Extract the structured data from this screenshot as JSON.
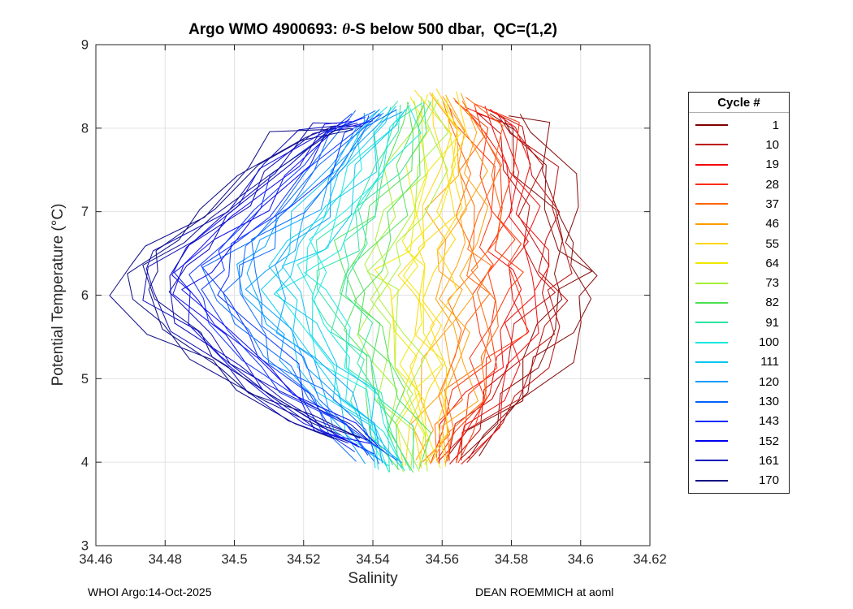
{
  "figure": {
    "title": {
      "part1": "Argo WMO 4900693: ",
      "theta": "θ",
      "part2": "-S below 500 dbar,  QC=(1,2)"
    },
    "footer": {
      "left": "WHOI Argo:14-Oct-2025",
      "right": "DEAN ROEMMICH at aoml"
    }
  },
  "chart_data": {
    "type": "line",
    "title": "Argo WMO 4900693: θ-S below 500 dbar,  QC=(1,2)",
    "xlabel": "Salinity",
    "ylabel": "Potential Temperature (°C)",
    "xlim": [
      34.46,
      34.62
    ],
    "ylim": [
      3,
      9
    ],
    "xticks": [
      34.46,
      34.48,
      34.5,
      34.52,
      34.54,
      34.56,
      34.58,
      34.6,
      34.62
    ],
    "xtick_labels": [
      "34.46",
      "34.48",
      "34.5",
      "34.52",
      "34.54",
      "34.56",
      "34.58",
      "34.6",
      "34.62"
    ],
    "yticks": [
      3,
      4,
      5,
      6,
      7,
      8,
      9
    ],
    "ytick_labels": [
      "3",
      "4",
      "5",
      "6",
      "7",
      "8",
      "9"
    ],
    "grid": true,
    "legend": {
      "title": "Cycle #",
      "position": "right-outside"
    },
    "series": [
      {
        "cycle": "1",
        "color": "#800000",
        "points": [
          [
            34.578,
            8.15
          ],
          [
            34.584,
            8.0
          ],
          [
            34.59,
            7.5
          ],
          [
            34.594,
            7.0
          ],
          [
            34.596,
            6.6
          ],
          [
            34.599,
            6.3
          ],
          [
            34.597,
            6.0
          ],
          [
            34.595,
            5.6
          ],
          [
            34.589,
            5.2
          ],
          [
            34.582,
            4.8
          ],
          [
            34.573,
            4.4
          ],
          [
            34.566,
            4.05
          ]
        ]
      },
      {
        "cycle": "10",
        "color": "#BB0000",
        "points": [
          [
            34.572,
            8.2
          ],
          [
            34.58,
            8.0
          ],
          [
            34.586,
            7.5
          ],
          [
            34.588,
            7.0
          ],
          [
            34.59,
            6.6
          ],
          [
            34.591,
            6.3
          ],
          [
            34.592,
            6.0
          ],
          [
            34.589,
            5.6
          ],
          [
            34.584,
            5.2
          ],
          [
            34.578,
            4.8
          ],
          [
            34.57,
            4.4
          ],
          [
            34.564,
            4.0
          ]
        ]
      },
      {
        "cycle": "19",
        "color": "#F10000",
        "points": [
          [
            34.57,
            8.25
          ],
          [
            34.577,
            8.0
          ],
          [
            34.581,
            7.5
          ],
          [
            34.582,
            7.0
          ],
          [
            34.583,
            6.6
          ],
          [
            34.584,
            6.3
          ],
          [
            34.585,
            6.0
          ],
          [
            34.582,
            5.6
          ],
          [
            34.578,
            5.2
          ],
          [
            34.574,
            4.8
          ],
          [
            34.567,
            4.4
          ],
          [
            34.562,
            4.0
          ]
        ]
      },
      {
        "cycle": "28",
        "color": "#FF2B00",
        "points": [
          [
            34.566,
            8.3
          ],
          [
            34.573,
            8.0
          ],
          [
            34.576,
            7.5
          ],
          [
            34.576,
            7.0
          ],
          [
            34.577,
            6.6
          ],
          [
            34.577,
            6.3
          ],
          [
            34.577,
            6.0
          ],
          [
            34.576,
            5.6
          ],
          [
            34.573,
            5.2
          ],
          [
            34.569,
            4.8
          ],
          [
            34.564,
            4.4
          ],
          [
            34.561,
            4.0
          ]
        ]
      },
      {
        "cycle": "37",
        "color": "#FF6300",
        "points": [
          [
            34.564,
            8.35
          ],
          [
            34.57,
            8.0
          ],
          [
            34.571,
            7.5
          ],
          [
            34.571,
            7.0
          ],
          [
            34.57,
            6.6
          ],
          [
            34.57,
            6.3
          ],
          [
            34.57,
            6.0
          ],
          [
            34.57,
            5.6
          ],
          [
            34.568,
            5.2
          ],
          [
            34.565,
            4.8
          ],
          [
            34.561,
            4.4
          ],
          [
            34.559,
            4.0
          ]
        ]
      },
      {
        "cycle": "46",
        "color": "#FF9C00",
        "points": [
          [
            34.561,
            8.4
          ],
          [
            34.566,
            8.0
          ],
          [
            34.567,
            7.5
          ],
          [
            34.565,
            7.0
          ],
          [
            34.564,
            6.6
          ],
          [
            34.563,
            6.3
          ],
          [
            34.563,
            6.0
          ],
          [
            34.563,
            5.6
          ],
          [
            34.562,
            5.2
          ],
          [
            34.561,
            4.8
          ],
          [
            34.558,
            4.4
          ],
          [
            34.557,
            4.0
          ]
        ]
      },
      {
        "cycle": "55",
        "color": "#FFD500",
        "points": [
          [
            34.558,
            8.45
          ],
          [
            34.563,
            8.0
          ],
          [
            34.562,
            7.5
          ],
          [
            34.56,
            7.0
          ],
          [
            34.557,
            6.6
          ],
          [
            34.556,
            6.3
          ],
          [
            34.556,
            6.0
          ],
          [
            34.557,
            5.6
          ],
          [
            34.557,
            5.2
          ],
          [
            34.557,
            4.8
          ],
          [
            34.556,
            4.4
          ],
          [
            34.555,
            3.95
          ]
        ]
      },
      {
        "cycle": "64",
        "color": "#F0E800",
        "points": [
          [
            34.556,
            8.4
          ],
          [
            34.559,
            8.0
          ],
          [
            34.557,
            7.5
          ],
          [
            34.554,
            7.0
          ],
          [
            34.551,
            6.6
          ],
          [
            34.549,
            6.3
          ],
          [
            34.549,
            6.0
          ],
          [
            34.551,
            5.6
          ],
          [
            34.552,
            5.2
          ],
          [
            34.552,
            4.8
          ],
          [
            34.553,
            4.4
          ],
          [
            34.554,
            3.95
          ]
        ]
      },
      {
        "cycle": "73",
        "color": "#A6F035",
        "points": [
          [
            34.555,
            8.35
          ],
          [
            34.556,
            8.0
          ],
          [
            34.553,
            7.5
          ],
          [
            34.549,
            7.0
          ],
          [
            34.544,
            6.6
          ],
          [
            34.542,
            6.3
          ],
          [
            34.542,
            6.0
          ],
          [
            34.544,
            5.6
          ],
          [
            34.546,
            5.2
          ],
          [
            34.548,
            4.8
          ],
          [
            34.55,
            4.4
          ],
          [
            34.552,
            3.9
          ]
        ]
      },
      {
        "cycle": "82",
        "color": "#4CE052",
        "points": [
          [
            34.553,
            8.3
          ],
          [
            34.552,
            8.0
          ],
          [
            34.548,
            7.5
          ],
          [
            34.543,
            7.0
          ],
          [
            34.538,
            6.6
          ],
          [
            34.535,
            6.3
          ],
          [
            34.535,
            6.0
          ],
          [
            34.538,
            5.6
          ],
          [
            34.541,
            5.2
          ],
          [
            34.544,
            4.8
          ],
          [
            34.547,
            4.4
          ],
          [
            34.55,
            3.9
          ]
        ]
      },
      {
        "cycle": "91",
        "color": "#2BE3A0",
        "points": [
          [
            34.551,
            8.3
          ],
          [
            34.548,
            8.0
          ],
          [
            34.543,
            7.5
          ],
          [
            34.537,
            7.0
          ],
          [
            34.532,
            6.6
          ],
          [
            34.528,
            6.3
          ],
          [
            34.528,
            6.0
          ],
          [
            34.532,
            5.6
          ],
          [
            34.536,
            5.2
          ],
          [
            34.54,
            4.8
          ],
          [
            34.544,
            4.4
          ],
          [
            34.548,
            3.9
          ]
        ]
      },
      {
        "cycle": "100",
        "color": "#0FE8E0",
        "points": [
          [
            34.548,
            8.25
          ],
          [
            34.545,
            8.0
          ],
          [
            34.539,
            7.5
          ],
          [
            34.532,
            7.0
          ],
          [
            34.525,
            6.6
          ],
          [
            34.521,
            6.3
          ],
          [
            34.521,
            6.0
          ],
          [
            34.525,
            5.6
          ],
          [
            34.53,
            5.2
          ],
          [
            34.536,
            4.8
          ],
          [
            34.541,
            4.4
          ],
          [
            34.546,
            3.9
          ]
        ]
      },
      {
        "cycle": "111",
        "color": "#00C8F0",
        "points": [
          [
            34.546,
            8.25
          ],
          [
            34.541,
            8.0
          ],
          [
            34.534,
            7.5
          ],
          [
            34.526,
            7.0
          ],
          [
            34.519,
            6.6
          ],
          [
            34.514,
            6.3
          ],
          [
            34.514,
            6.0
          ],
          [
            34.519,
            5.6
          ],
          [
            34.525,
            5.2
          ],
          [
            34.531,
            4.8
          ],
          [
            34.538,
            4.4
          ],
          [
            34.545,
            3.95
          ]
        ]
      },
      {
        "cycle": "120",
        "color": "#009CFF",
        "points": [
          [
            34.543,
            8.2
          ],
          [
            34.538,
            8.0
          ],
          [
            34.529,
            7.5
          ],
          [
            34.521,
            7.0
          ],
          [
            34.512,
            6.6
          ],
          [
            34.507,
            6.3
          ],
          [
            34.507,
            6.0
          ],
          [
            34.513,
            5.6
          ],
          [
            34.52,
            5.2
          ],
          [
            34.527,
            4.8
          ],
          [
            34.535,
            4.4
          ],
          [
            34.543,
            4.0
          ]
        ]
      },
      {
        "cycle": "130",
        "color": "#0063FF",
        "points": [
          [
            34.541,
            8.2
          ],
          [
            34.534,
            8.0
          ],
          [
            34.525,
            7.5
          ],
          [
            34.515,
            7.0
          ],
          [
            34.506,
            6.6
          ],
          [
            34.5,
            6.3
          ],
          [
            34.5,
            6.0
          ],
          [
            34.506,
            5.6
          ],
          [
            34.514,
            5.2
          ],
          [
            34.523,
            4.8
          ],
          [
            34.533,
            4.4
          ],
          [
            34.541,
            4.0
          ]
        ]
      },
      {
        "cycle": "143",
        "color": "#002BFF",
        "points": [
          [
            34.538,
            8.15
          ],
          [
            34.531,
            8.0
          ],
          [
            34.52,
            7.5
          ],
          [
            34.51,
            7.0
          ],
          [
            34.499,
            6.6
          ],
          [
            34.493,
            6.3
          ],
          [
            34.493,
            6.0
          ],
          [
            34.5,
            5.6
          ],
          [
            34.509,
            5.2
          ],
          [
            34.519,
            4.8
          ],
          [
            34.53,
            4.4
          ],
          [
            34.539,
            4.1
          ]
        ]
      },
      {
        "cycle": "152",
        "color": "#0000F1",
        "points": [
          [
            34.536,
            8.1
          ],
          [
            34.527,
            8.0
          ],
          [
            34.515,
            7.5
          ],
          [
            34.504,
            7.0
          ],
          [
            34.493,
            6.6
          ],
          [
            34.486,
            6.3
          ],
          [
            34.486,
            6.0
          ],
          [
            34.494,
            5.6
          ],
          [
            34.504,
            5.2
          ],
          [
            34.514,
            4.8
          ],
          [
            34.527,
            4.4
          ],
          [
            34.538,
            4.2
          ]
        ]
      },
      {
        "cycle": "161",
        "color": "#0000B8",
        "points": [
          [
            34.533,
            8.05
          ],
          [
            34.524,
            8.0
          ],
          [
            34.511,
            7.5
          ],
          [
            34.499,
            7.0
          ],
          [
            34.486,
            6.6
          ],
          [
            34.479,
            6.3
          ],
          [
            34.479,
            6.0
          ],
          [
            34.487,
            5.6
          ],
          [
            34.498,
            5.2
          ],
          [
            34.51,
            4.8
          ],
          [
            34.524,
            4.45
          ],
          [
            34.536,
            4.25
          ]
        ]
      },
      {
        "cycle": "170",
        "color": "#000080",
        "points": [
          [
            34.531,
            8.0
          ],
          [
            34.52,
            7.9
          ],
          [
            34.506,
            7.5
          ],
          [
            34.493,
            7.0
          ],
          [
            34.48,
            6.6
          ],
          [
            34.472,
            6.3
          ],
          [
            34.472,
            6.0
          ],
          [
            34.481,
            5.6
          ],
          [
            34.493,
            5.2
          ],
          [
            34.506,
            4.8
          ],
          [
            34.521,
            4.5
          ],
          [
            34.533,
            4.3
          ]
        ]
      }
    ]
  }
}
